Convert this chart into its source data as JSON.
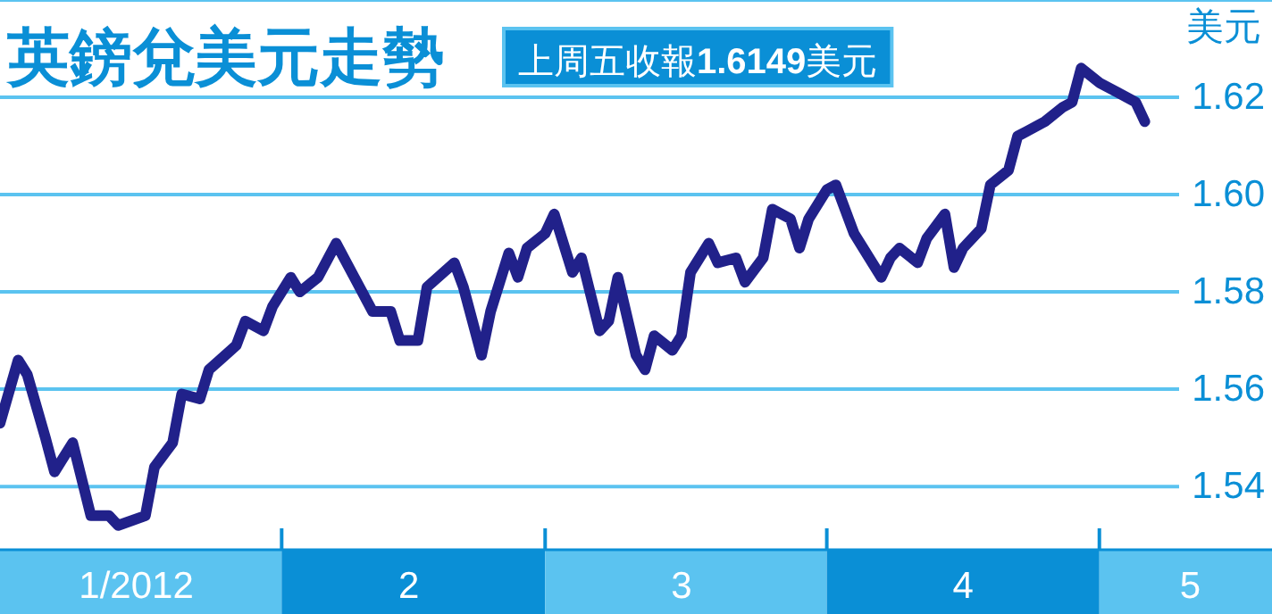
{
  "chart_data": {
    "type": "line",
    "title": "英鎊兌美元走勢",
    "subtitle": "上周五收報**1.6149**美元",
    "ylabel": "美元",
    "xlim": [
      "2012-01-01",
      "2012-05-20"
    ],
    "ylim": [
      1.527,
      1.64
    ],
    "yticks": [
      1.54,
      1.56,
      1.58,
      {
        "value": 1.6,
        "label": "1.60"
      },
      1.62
    ],
    "xticks": [
      {
        "value": "2012-01-16",
        "label": "1/2012"
      },
      {
        "value": "2012-02-01",
        "label": null
      },
      {
        "value": "2012-02-15",
        "label": "2"
      },
      {
        "value": "2012-03-01",
        "label": null
      },
      {
        "value": "2012-03-16",
        "label": "3"
      },
      {
        "value": "2012-04-01",
        "label": null
      },
      {
        "value": "2012-04-16",
        "label": "4"
      },
      {
        "value": "2012-05-01",
        "label": null
      },
      {
        "value": "2012-05-11",
        "label": "5"
      }
    ],
    "grid": "y",
    "line_style": "solid",
    "series": [
      {
        "color": "#21218a",
        "x": [
          "2012-01-01",
          "2012-01-03",
          "2012-01-04",
          "2012-01-06",
          "2012-01-07",
          "2012-01-09",
          "2012-01-11",
          "2012-01-13",
          "2012-01-14",
          "2012-01-17",
          "2012-01-18",
          "2012-01-20",
          "2012-01-21",
          "2012-01-23",
          "2012-01-24",
          "2012-01-27",
          "2012-01-28",
          "2012-01-30",
          "2012-01-31",
          "2012-02-02",
          "2012-02-03",
          "2012-02-05",
          "2012-02-07",
          "2012-02-09",
          "2012-02-11",
          "2012-02-13",
          "2012-02-14",
          "2012-02-16",
          "2012-02-17",
          "2012-02-20",
          "2012-02-21",
          "2012-02-23",
          "2012-02-24",
          "2012-02-26",
          "2012-02-27",
          "2012-02-28",
          "2012-03-01",
          "2012-03-02",
          "2012-03-04",
          "2012-03-05",
          "2012-03-07",
          "2012-03-08",
          "2012-03-09",
          "2012-03-11",
          "2012-03-12",
          "2012-03-13",
          "2012-03-15",
          "2012-03-16",
          "2012-03-17",
          "2012-03-19",
          "2012-03-20",
          "2012-03-22",
          "2012-03-23",
          "2012-03-25",
          "2012-03-26",
          "2012-03-28",
          "2012-03-29",
          "2012-03-30",
          "2012-04-01",
          "2012-04-02",
          "2012-04-04",
          "2012-04-05",
          "2012-04-07",
          "2012-04-08",
          "2012-04-09",
          "2012-04-11",
          "2012-04-12",
          "2012-04-14",
          "2012-04-15",
          "2012-04-16",
          "2012-04-18",
          "2012-04-19",
          "2012-04-21",
          "2012-04-22",
          "2012-04-23",
          "2012-04-25",
          "2012-04-27",
          "2012-04-28",
          "2012-04-29",
          "2012-05-01",
          "2012-05-03",
          "2012-05-05",
          "2012-05-06"
        ],
        "values": [
          1.553,
          1.566,
          1.563,
          1.55,
          1.543,
          1.549,
          1.534,
          1.534,
          1.532,
          1.534,
          1.544,
          1.549,
          1.559,
          1.558,
          1.564,
          1.569,
          1.574,
          1.572,
          1.577,
          1.583,
          1.58,
          1.583,
          1.59,
          1.583,
          1.576,
          1.576,
          1.57,
          1.57,
          1.581,
          1.586,
          1.581,
          1.567,
          1.576,
          1.588,
          1.583,
          1.589,
          1.592,
          1.596,
          1.584,
          1.587,
          1.572,
          1.574,
          1.583,
          1.567,
          1.564,
          1.571,
          1.568,
          1.571,
          1.584,
          1.59,
          1.586,
          1.587,
          1.582,
          1.587,
          1.597,
          1.595,
          1.589,
          1.595,
          1.601,
          1.602,
          1.592,
          1.589,
          1.583,
          1.587,
          1.589,
          1.586,
          1.591,
          1.596,
          1.585,
          1.589,
          1.593,
          1.602,
          1.605,
          1.612,
          1.613,
          1.615,
          1.618,
          1.619,
          1.626,
          1.623,
          1.621,
          1.619,
          1.615
        ]
      }
    ]
  }
}
